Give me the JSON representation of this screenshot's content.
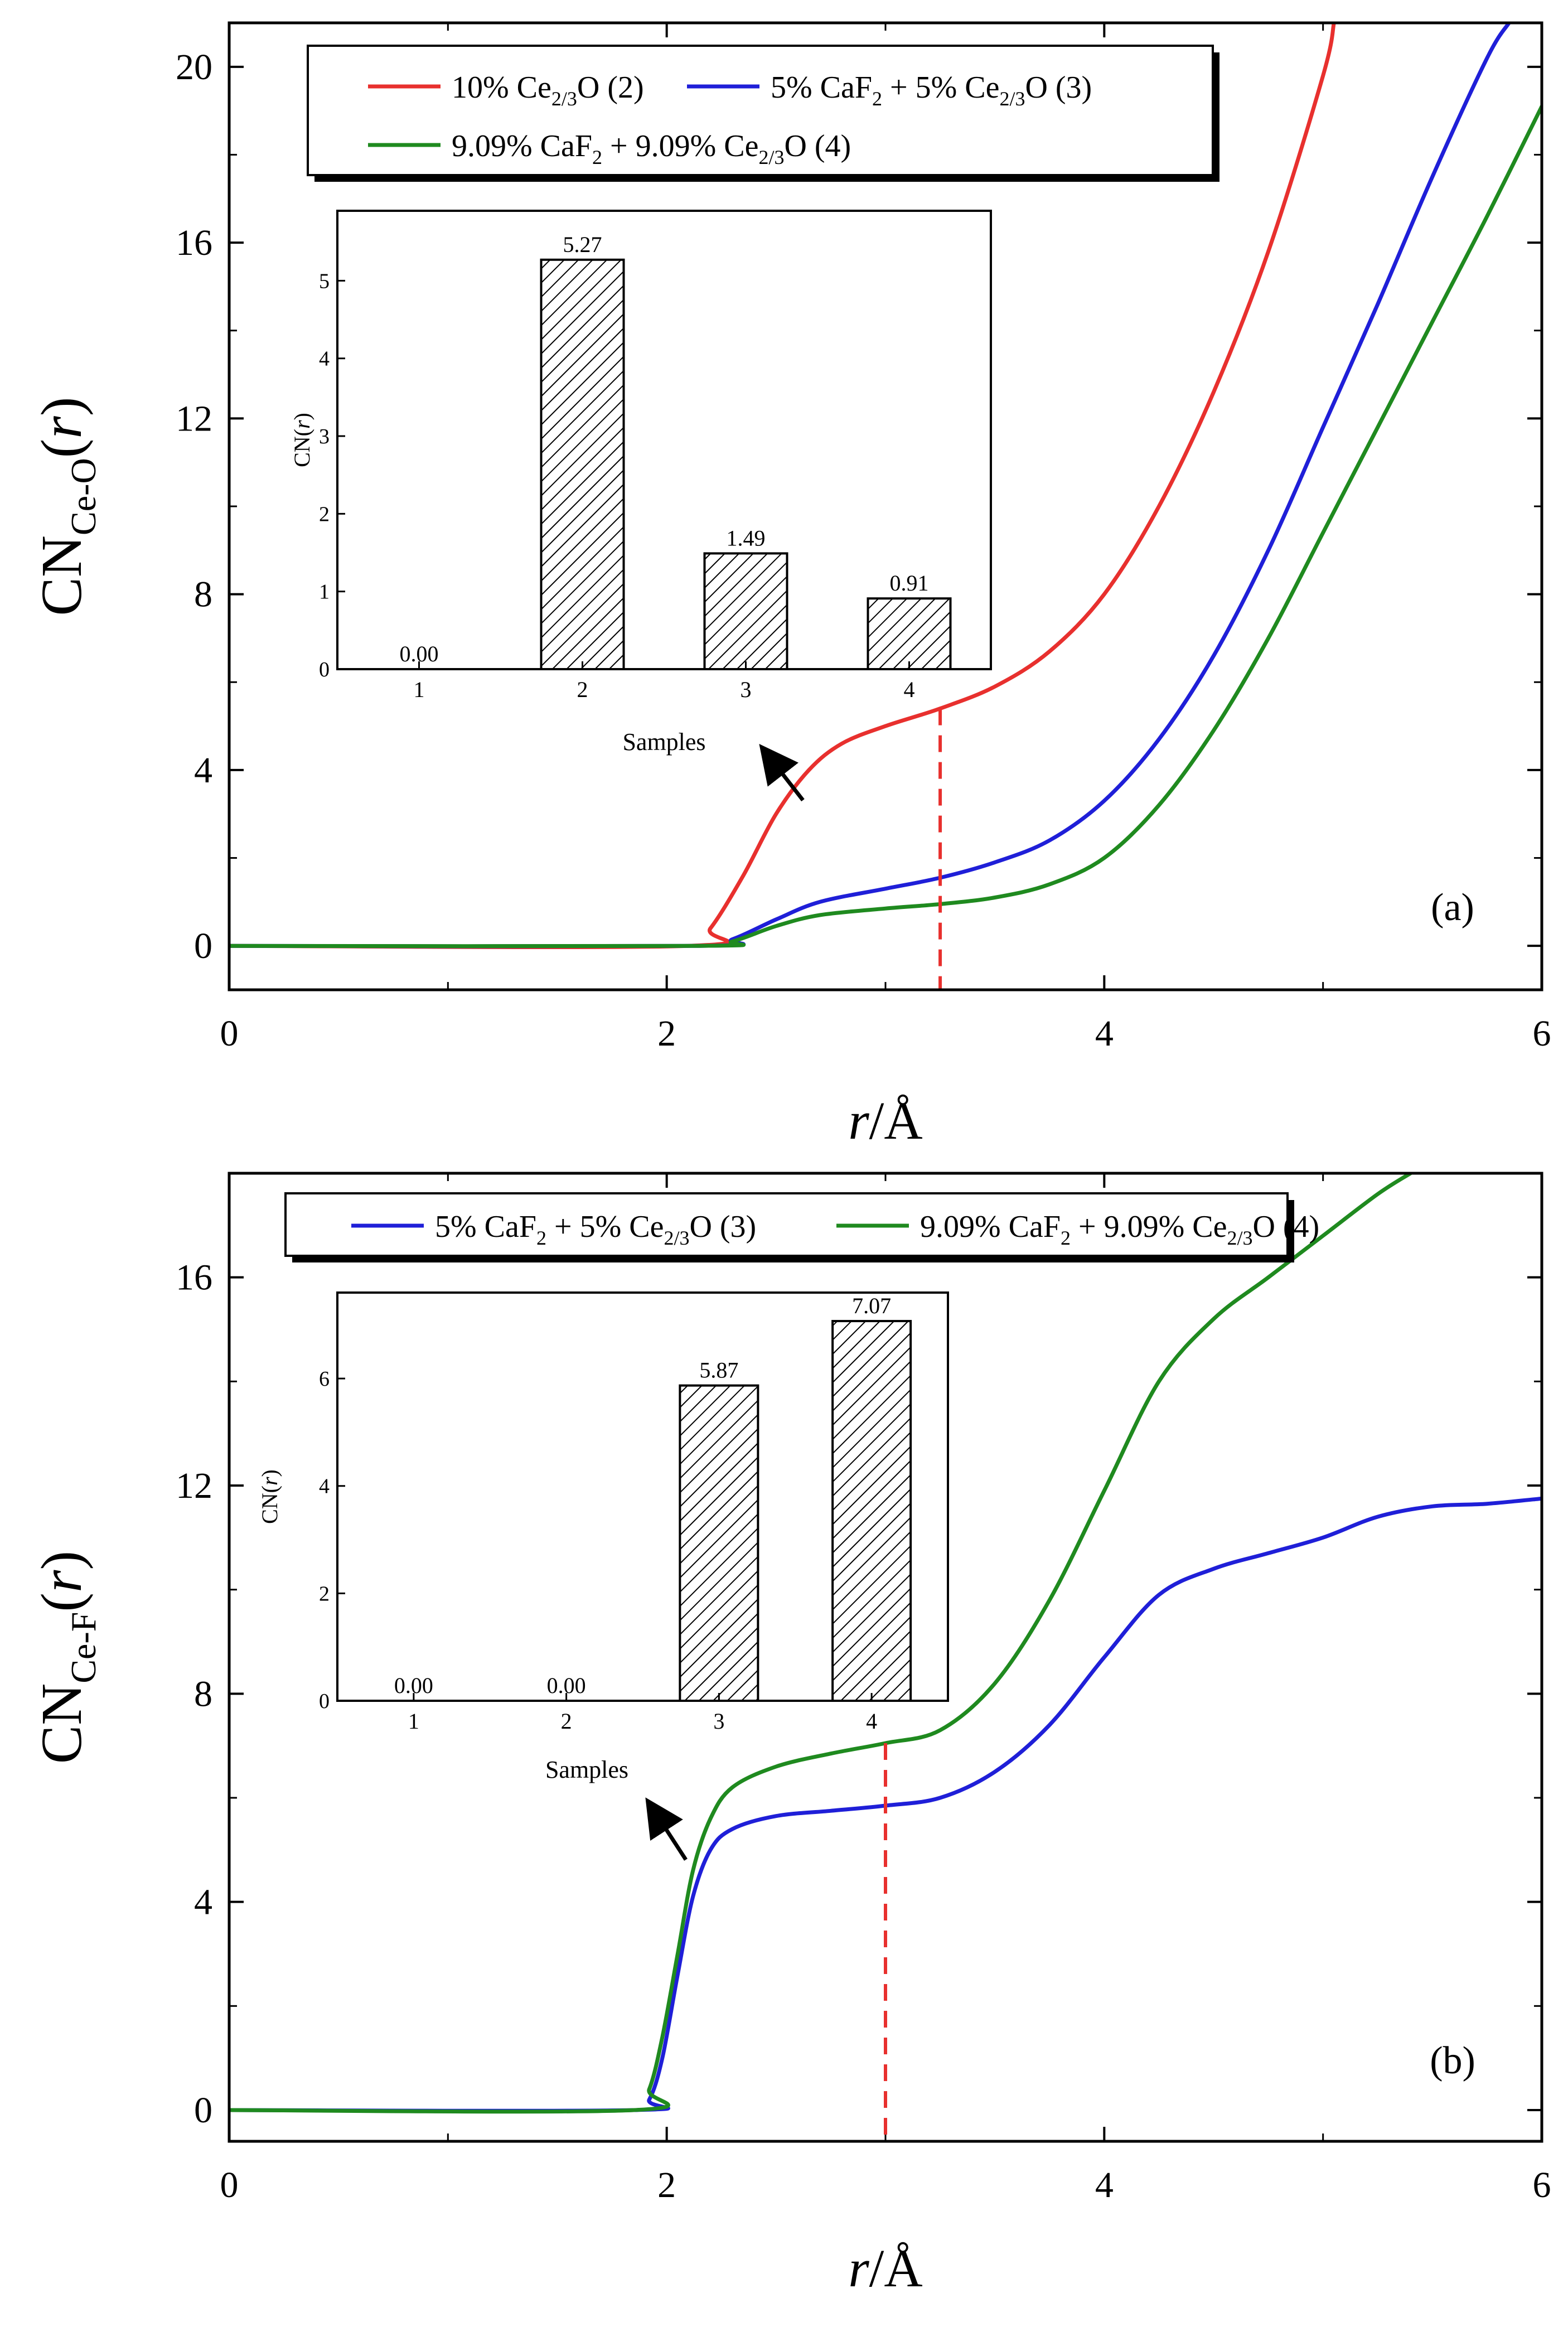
{
  "chart_data": [
    {
      "id": "a",
      "type": "line",
      "panel_label": "(a)",
      "ylabel": {
        "base": "CN",
        "sub": "Ce-O",
        "paren_open": "(",
        "var": "r",
        "paren_close": ")"
      },
      "xlabel": {
        "var": "r",
        "rest": "/Å"
      },
      "xlim": [
        0,
        6
      ],
      "ylim": [
        -1,
        21
      ],
      "xticks": [
        "0",
        "2",
        "4",
        "6"
      ],
      "xtick_values": [
        0,
        2,
        4,
        6
      ],
      "yticks": [
        "0",
        "4",
        "8",
        "12",
        "16",
        "20"
      ],
      "ytick_values": [
        0,
        4,
        8,
        12,
        16,
        20
      ],
      "marker_x": 3.25,
      "legend": [
        {
          "pre": "10% Ce",
          "sub": "2/3",
          "post": "O (2)",
          "color": "#e8302e"
        },
        {
          "pre": "5% CaF",
          "sub": "2",
          "mid": " + 5% Ce",
          "sub2": "2/3",
          "post": "O (3)",
          "color": "#1f1fd8"
        },
        {
          "pre": "9.09% CaF",
          "sub": "2",
          "mid": " + 9.09% Ce",
          "sub2": "2/3",
          "post": "O (4)",
          "color": "#1f8a1f"
        }
      ],
      "series": [
        {
          "name": "10% Ce2/3O (2)",
          "color": "#e8302e",
          "x": [
            0,
            2.1,
            2.2,
            2.35,
            2.5,
            2.65,
            2.8,
            3.0,
            3.25,
            3.5,
            3.75,
            4.0,
            4.25,
            4.5,
            4.75,
            5.0,
            5.05
          ],
          "y": [
            0,
            0,
            0.4,
            1.6,
            3.0,
            4.0,
            4.6,
            5.0,
            5.4,
            5.9,
            6.7,
            8.0,
            10.0,
            12.6,
            15.8,
            19.8,
            21
          ]
        },
        {
          "name": "5% CaF2 + 5% Ce2/3O (3)",
          "color": "#1f1fd8",
          "x": [
            0,
            2.15,
            2.3,
            2.5,
            2.7,
            3.0,
            3.25,
            3.5,
            3.75,
            4.0,
            4.25,
            4.5,
            4.75,
            5.0,
            5.25,
            5.5,
            5.75,
            5.85
          ],
          "y": [
            0,
            0,
            0.15,
            0.6,
            1.0,
            1.3,
            1.55,
            1.9,
            2.4,
            3.3,
            4.7,
            6.6,
            9.0,
            11.8,
            14.6,
            17.5,
            20.2,
            21
          ]
        },
        {
          "name": "9.09% CaF2 + 9.09% Ce2/3O (4)",
          "color": "#1f8a1f",
          "x": [
            0,
            2.15,
            2.3,
            2.5,
            2.7,
            3.0,
            3.25,
            3.5,
            3.75,
            4.0,
            4.25,
            4.5,
            4.75,
            5.0,
            5.25,
            5.5,
            5.75,
            6.0
          ],
          "y": [
            0,
            0,
            0.1,
            0.45,
            0.7,
            0.85,
            0.95,
            1.1,
            1.4,
            2.0,
            3.2,
            4.9,
            7.0,
            9.4,
            11.8,
            14.2,
            16.6,
            19.1
          ]
        }
      ],
      "inset": {
        "type": "bar",
        "xlabel": "Samples",
        "ylabel": {
          "pre": "CN(",
          "var": "r",
          "post": ")"
        },
        "categories": [
          "1",
          "2",
          "3",
          "4"
        ],
        "values": [
          0.0,
          5.27,
          1.49,
          0.91
        ],
        "value_labels": [
          "0.00",
          "5.27",
          "1.49",
          "0.91"
        ],
        "ylim": [
          0,
          5.9
        ],
        "yticks": [
          "0",
          "1",
          "2",
          "3",
          "4",
          "5"
        ],
        "ytick_values": [
          0,
          1,
          2,
          3,
          4,
          5
        ]
      }
    },
    {
      "id": "b",
      "type": "line",
      "panel_label": "(b)",
      "ylabel": {
        "base": "CN",
        "sub": "Ce-F",
        "paren_open": "(",
        "var": "r",
        "paren_close": ")"
      },
      "xlabel": {
        "var": "r",
        "rest": "/Å"
      },
      "xlim": [
        0,
        6
      ],
      "ylim": [
        -0.6,
        18
      ],
      "xticks": [
        "0",
        "2",
        "4",
        "6"
      ],
      "xtick_values": [
        0,
        2,
        4,
        6
      ],
      "yticks": [
        "0",
        "4",
        "8",
        "12",
        "16"
      ],
      "ytick_values": [
        0,
        4,
        8,
        12,
        16
      ],
      "marker_x": 3.0,
      "legend": [
        {
          "pre": "5% CaF",
          "sub": "2",
          "mid": " + 5% Ce",
          "sub2": "2/3",
          "post": "O (3)",
          "color": "#1f1fd8"
        },
        {
          "pre": "9.09% CaF",
          "sub": "2",
          "mid": " + 9.09% Ce",
          "sub2": "2/3",
          "post": "O (4)",
          "color": "#1f8a1f"
        }
      ],
      "series": [
        {
          "name": "5% CaF2 + 5% Ce2/3O (3)",
          "color": "#1f1fd8",
          "x": [
            0,
            1.85,
            1.92,
            1.98,
            2.05,
            2.12,
            2.2,
            2.3,
            2.5,
            2.75,
            3.0,
            3.25,
            3.5,
            3.75,
            4.0,
            4.25,
            4.5,
            4.75,
            5.0,
            5.25,
            5.5,
            5.75,
            6.0
          ],
          "y": [
            0,
            0,
            0.2,
            1.0,
            2.6,
            4.1,
            5.0,
            5.4,
            5.65,
            5.75,
            5.85,
            6.0,
            6.5,
            7.4,
            8.7,
            9.9,
            10.4,
            10.7,
            11.0,
            11.4,
            11.6,
            11.65,
            11.75
          ]
        },
        {
          "name": "9.09% CaF2 + 9.09% Ce2/3O (4)",
          "color": "#1f8a1f",
          "x": [
            0,
            1.85,
            1.92,
            1.98,
            2.05,
            2.12,
            2.2,
            2.3,
            2.5,
            2.75,
            3.0,
            3.25,
            3.5,
            3.75,
            4.0,
            4.25,
            4.5,
            4.75,
            5.0,
            5.25,
            5.4
          ],
          "y": [
            0,
            0,
            0.4,
            1.4,
            3.0,
            4.6,
            5.6,
            6.2,
            6.6,
            6.85,
            7.05,
            7.3,
            8.2,
            9.8,
            11.9,
            14.0,
            15.2,
            16.0,
            16.8,
            17.6,
            18
          ]
        }
      ],
      "inset": {
        "type": "bar",
        "xlabel": "Samples",
        "ylabel": {
          "pre": "CN(",
          "var": "r",
          "post": ")"
        },
        "categories": [
          "1",
          "2",
          "3",
          "4"
        ],
        "values": [
          0.0,
          0.0,
          5.87,
          7.07
        ],
        "value_labels": [
          "0.00",
          "0.00",
          "5.87",
          "7.07"
        ],
        "ylim": [
          0,
          7.6
        ],
        "yticks": [
          "0",
          "2",
          "4",
          "6"
        ],
        "ytick_values": [
          0,
          2,
          4,
          6
        ]
      }
    }
  ]
}
